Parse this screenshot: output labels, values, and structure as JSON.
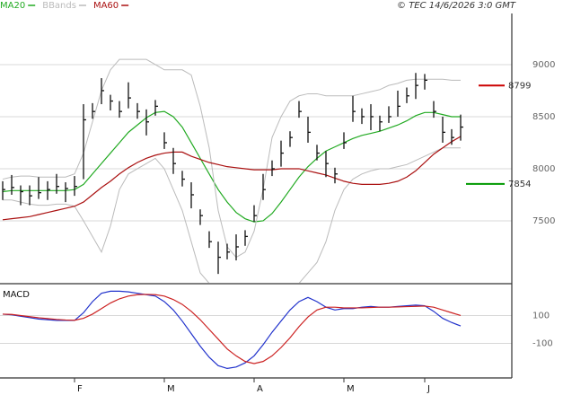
{
  "header": {
    "copyright": "© TEC 14/6/2026 3:0 GMT"
  },
  "chart_data": [
    {
      "type": "ohlc",
      "ylim": [
        6905,
        9491
      ],
      "yticks": [
        7500,
        8000,
        8500,
        9000
      ],
      "grid": true,
      "x_labels": [
        "F",
        "M",
        "A",
        "M",
        "J"
      ],
      "x_label_at": [
        8,
        18,
        28,
        38,
        47
      ],
      "close": [
        7800,
        7820,
        7780,
        7740,
        7770,
        7800,
        7830,
        7810,
        7830,
        8470,
        8550,
        8750,
        8650,
        8550,
        8680,
        8550,
        8450,
        8600,
        8250,
        8050,
        7900,
        7750,
        7550,
        7300,
        7150,
        7200,
        7250,
        7350,
        7550,
        7800,
        8000,
        8150,
        8300,
        8550,
        8350,
        8150,
        8050,
        7950,
        8250,
        8550,
        8500,
        8500,
        8450,
        8500,
        8600,
        8700,
        8800,
        8850,
        8550,
        8350,
        8300,
        8400
      ],
      "high": [
        7880,
        7940,
        7840,
        7840,
        7920,
        7880,
        7950,
        7870,
        7930,
        8620,
        8630,
        8870,
        8710,
        8650,
        8830,
        8630,
        8570,
        8660,
        8350,
        8200,
        7980,
        7870,
        7610,
        7400,
        7300,
        7280,
        7370,
        7410,
        7650,
        7950,
        8080,
        8270,
        8360,
        8650,
        8500,
        8230,
        8170,
        8010,
        8350,
        8700,
        8580,
        8620,
        8510,
        8600,
        8750,
        8780,
        8920,
        8910,
        8650,
        8500,
        8380,
        8520
      ],
      "low": [
        7700,
        7750,
        7650,
        7650,
        7710,
        7700,
        7760,
        7680,
        7740,
        7900,
        8480,
        8620,
        8560,
        8490,
        8580,
        8480,
        8320,
        8510,
        8190,
        7950,
        7830,
        7620,
        7460,
        7240,
        6990,
        7130,
        7120,
        7260,
        7490,
        7700,
        7930,
        8020,
        8210,
        8490,
        8250,
        8080,
        7920,
        7860,
        8190,
        8450,
        8430,
        8370,
        8360,
        8440,
        8500,
        8630,
        8670,
        8760,
        8490,
        8250,
        8230,
        8270
      ],
      "bar_color": "#111111",
      "series": [
        {
          "name": "MA20",
          "color": "#22aa22",
          "values": [
            7780,
            7790,
            7790,
            7790,
            7790,
            7790,
            7790,
            7790,
            7800,
            7850,
            7950,
            8050,
            8150,
            8250,
            8350,
            8420,
            8490,
            8540,
            8550,
            8500,
            8400,
            8250,
            8100,
            7950,
            7800,
            7680,
            7580,
            7520,
            7490,
            7500,
            7570,
            7680,
            7800,
            7920,
            8020,
            8100,
            8170,
            8210,
            8250,
            8290,
            8320,
            8340,
            8360,
            8390,
            8420,
            8460,
            8510,
            8540,
            8540,
            8520,
            8500,
            8500
          ]
        },
        {
          "name": "BBands",
          "color": "#bbbbbb",
          "upper": [
            7900,
            7920,
            7930,
            7930,
            7920,
            7920,
            7920,
            7920,
            7950,
            8150,
            8450,
            8750,
            8950,
            9050,
            9050,
            9050,
            9050,
            9000,
            8950,
            8950,
            8950,
            8900,
            8600,
            8200,
            7600,
            7250,
            7150,
            7200,
            7400,
            7800,
            8300,
            8500,
            8650,
            8700,
            8720,
            8720,
            8700,
            8700,
            8700,
            8700,
            8720,
            8740,
            8760,
            8800,
            8820,
            8850,
            8860,
            8860,
            8860,
            8860,
            8850,
            8850
          ],
          "lower": [
            7700,
            7700,
            7680,
            7660,
            7650,
            7650,
            7660,
            7660,
            7640,
            7500,
            7350,
            7200,
            7450,
            7800,
            7950,
            8000,
            8050,
            8100,
            8000,
            7800,
            7600,
            7300,
            7000,
            6900,
            6800,
            6700,
            6650,
            6700,
            6800,
            6850,
            6900,
            6850,
            6850,
            6900,
            7000,
            7100,
            7300,
            7600,
            7800,
            7900,
            7950,
            7980,
            8000,
            8000,
            8020,
            8040,
            8080,
            8120,
            8160,
            8200,
            8200,
            8200
          ]
        },
        {
          "name": "MA60",
          "color": "#aa1111",
          "values": [
            7510,
            7520,
            7530,
            7540,
            7560,
            7580,
            7600,
            7620,
            7640,
            7680,
            7750,
            7820,
            7880,
            7950,
            8010,
            8060,
            8100,
            8130,
            8150,
            8160,
            8160,
            8120,
            8090,
            8060,
            8040,
            8020,
            8010,
            8000,
            7990,
            7990,
            7990,
            8000,
            8000,
            8000,
            7980,
            7960,
            7940,
            7910,
            7880,
            7860,
            7850,
            7850,
            7850,
            7860,
            7880,
            7920,
            7980,
            8060,
            8140,
            8200,
            8260,
            8310
          ]
        }
      ],
      "levels": [
        {
          "value": 8799,
          "color": "#cc0000"
        },
        {
          "value": 7854,
          "color": "#009900"
        }
      ]
    },
    {
      "type": "line",
      "title": "MACD",
      "ylim": [
        -342,
        316
      ],
      "yticks": [
        100,
        -100
      ],
      "grid": true,
      "series": [
        {
          "color": "#2233cc",
          "values": [
            110,
            105,
            95,
            85,
            75,
            70,
            65,
            65,
            65,
            120,
            200,
            260,
            275,
            275,
            270,
            260,
            250,
            240,
            200,
            140,
            60,
            -30,
            -120,
            -200,
            -260,
            -280,
            -270,
            -240,
            -190,
            -110,
            -20,
            60,
            140,
            200,
            230,
            200,
            160,
            140,
            150,
            150,
            160,
            165,
            160,
            160,
            165,
            170,
            175,
            170,
            130,
            80,
            50,
            25
          ]
        },
        {
          "color": "#cc2222",
          "values": [
            110,
            108,
            100,
            92,
            84,
            78,
            72,
            68,
            66,
            80,
            110,
            150,
            190,
            220,
            240,
            250,
            252,
            250,
            240,
            215,
            180,
            130,
            70,
            0,
            -70,
            -140,
            -190,
            -230,
            -245,
            -230,
            -190,
            -130,
            -60,
            20,
            90,
            140,
            160,
            160,
            155,
            155,
            155,
            158,
            160,
            160,
            162,
            164,
            166,
            168,
            160,
            140,
            120,
            100
          ]
        }
      ]
    }
  ]
}
